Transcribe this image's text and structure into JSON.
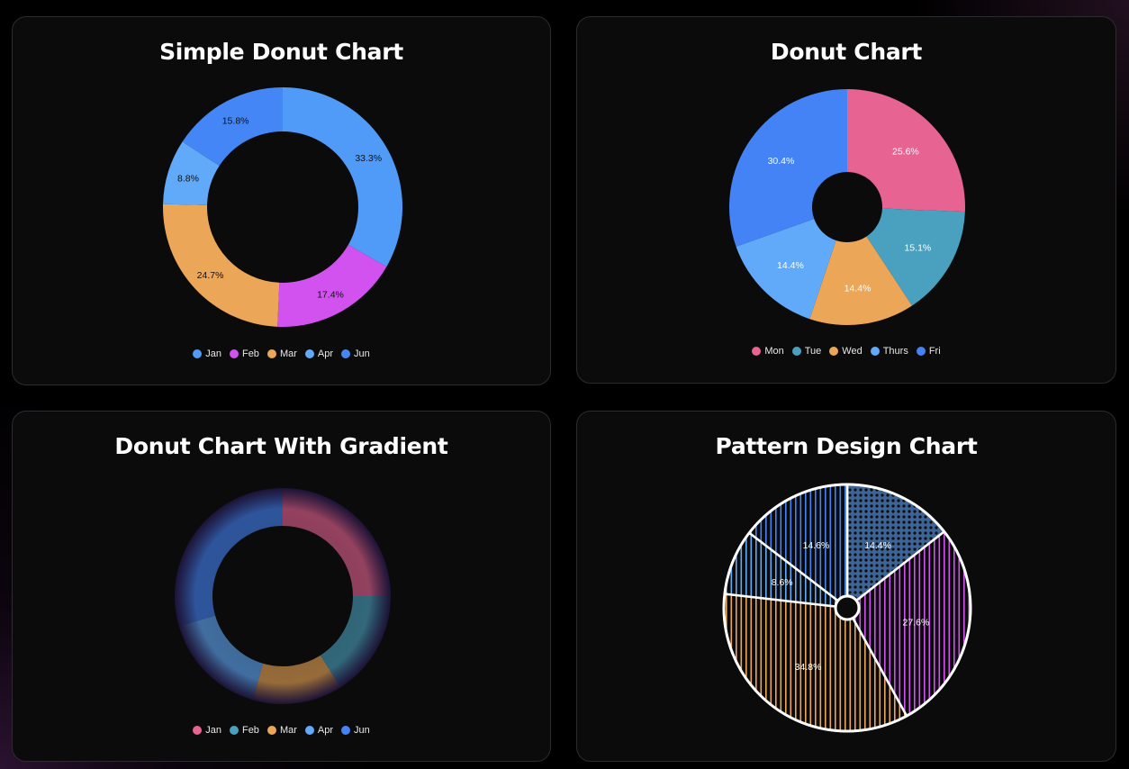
{
  "chart_data": [
    {
      "type": "pie",
      "variant": "donut",
      "title": "Simple Donut Chart",
      "categories": [
        "Jan",
        "Feb",
        "Mar",
        "Apr",
        "Jun"
      ],
      "values": [
        33.3,
        17.4,
        24.7,
        8.8,
        15.8
      ],
      "labels": [
        "33.3%",
        "17.4%",
        "24.7%",
        "8.8%",
        "15.8%"
      ],
      "colors": [
        "#519bf8",
        "#d152ef",
        "#eca657",
        "#61aafa",
        "#4486f5"
      ],
      "label_color": "#111111",
      "legend_position": "bottom"
    },
    {
      "type": "pie",
      "variant": "donut",
      "title": "Donut Chart",
      "categories": [
        "Mon",
        "Tue",
        "Wed",
        "Thurs",
        "Fri"
      ],
      "values": [
        25.6,
        15.1,
        14.4,
        14.4,
        30.4
      ],
      "labels": [
        "25.6%",
        "15.1%",
        "14.4%",
        "14.4%",
        "30.4%"
      ],
      "colors": [
        "#e66392",
        "#4aa1bf",
        "#eca657",
        "#61aafa",
        "#4483f6"
      ],
      "label_color": "#ffffff",
      "legend_position": "bottom"
    },
    {
      "type": "pie",
      "variant": "donut-gradient",
      "title": "Donut Chart With Gradient",
      "categories": [
        "Jan",
        "Feb",
        "Mar",
        "Apr",
        "Jun"
      ],
      "values": [
        25.0,
        16.0,
        13.5,
        16.0,
        29.5
      ],
      "labels": [],
      "colors": [
        "#e66392",
        "#4aa1bf",
        "#eca657",
        "#61aafa",
        "#4483f6"
      ],
      "legend_position": "bottom"
    },
    {
      "type": "pie",
      "variant": "pattern",
      "title": "Pattern Design Chart",
      "categories": [
        "",
        "",
        "",
        "",
        ""
      ],
      "values": [
        14.4,
        27.6,
        34.8,
        8.6,
        14.6
      ],
      "labels": [
        "14.4%",
        "27.6%",
        "34.8%",
        "8.6%",
        "14.6%"
      ],
      "colors": [
        "#3c6496",
        "#d152ef",
        "#eca657",
        "#61aafa",
        "#4483f6"
      ],
      "patterns": [
        "dots",
        "vertical-lines",
        "vertical-lines",
        "vertical-lines",
        "vertical-lines"
      ],
      "label_color": "#ffffff"
    }
  ],
  "cards": [
    {
      "title": "Simple Donut Chart",
      "legend": [
        {
          "label": "Jan",
          "color": "#519bf8"
        },
        {
          "label": "Feb",
          "color": "#d152ef"
        },
        {
          "label": "Mar",
          "color": "#eca657"
        },
        {
          "label": "Apr",
          "color": "#61aafa"
        },
        {
          "label": "Jun",
          "color": "#4486f5"
        }
      ]
    },
    {
      "title": "Donut Chart",
      "legend": [
        {
          "label": "Mon",
          "color": "#e66392"
        },
        {
          "label": "Tue",
          "color": "#4aa1bf"
        },
        {
          "label": "Wed",
          "color": "#eca657"
        },
        {
          "label": "Thurs",
          "color": "#61aafa"
        },
        {
          "label": "Fri",
          "color": "#4483f6"
        }
      ]
    },
    {
      "title": "Donut Chart With Gradient",
      "legend": [
        {
          "label": "Jan",
          "color": "#e66392"
        },
        {
          "label": "Feb",
          "color": "#4aa1bf"
        },
        {
          "label": "Mar",
          "color": "#eca657"
        },
        {
          "label": "Apr",
          "color": "#61aafa"
        },
        {
          "label": "Jun",
          "color": "#4483f6"
        }
      ]
    },
    {
      "title": "Pattern Design Chart",
      "legend": []
    }
  ]
}
